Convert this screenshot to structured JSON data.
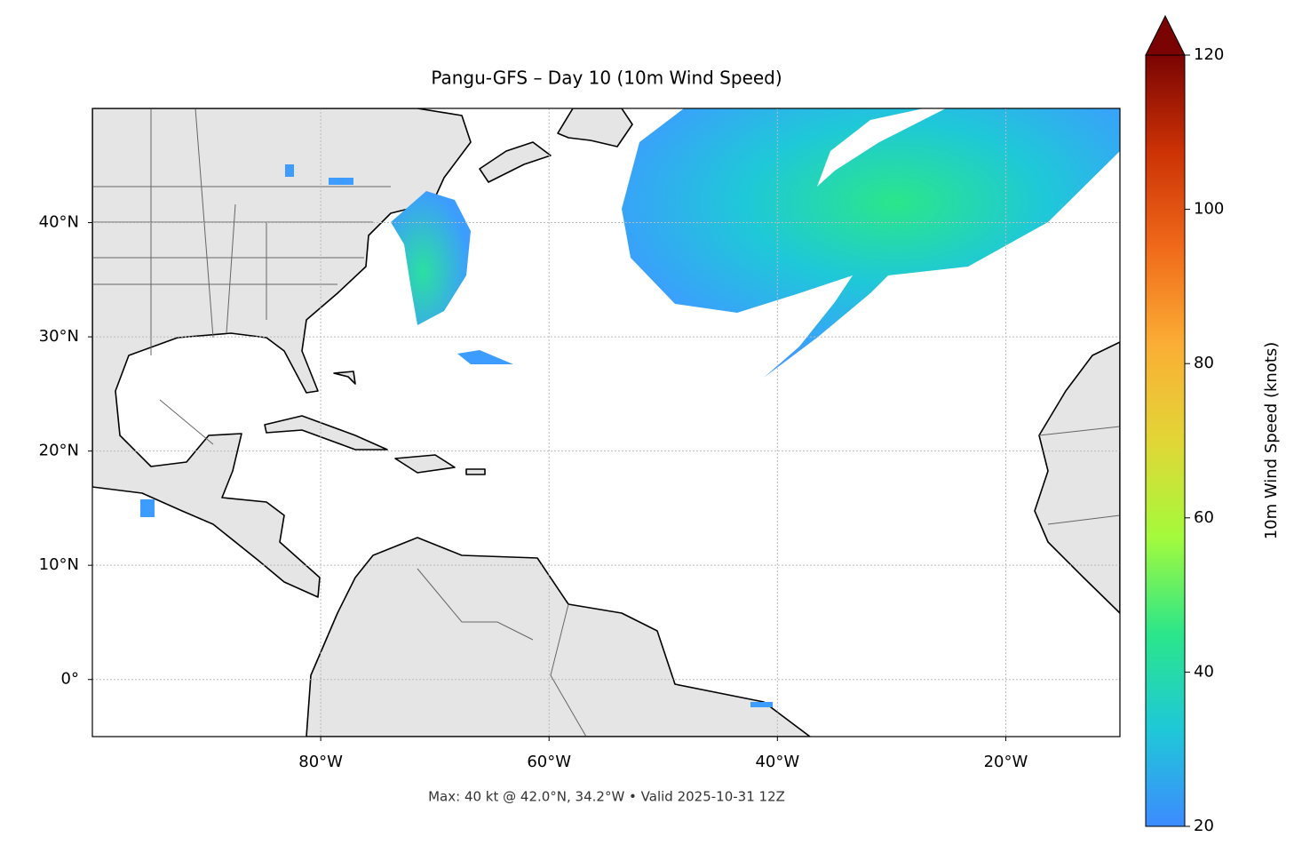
{
  "chart_data": {
    "type": "map",
    "title": "Pangu-GFS – Day 10 (10m Wind Speed)",
    "subtitle": "Max: 40 kt @ 42.0°N, 34.2°W • Valid 2025-10-31 12Z",
    "xlim": [
      -100,
      -10
    ],
    "ylim": [
      -5,
      50
    ],
    "xticks": [
      {
        "value": -80,
        "label": "80°W"
      },
      {
        "value": -60,
        "label": "60°W"
      },
      {
        "value": -40,
        "label": "40°W"
      },
      {
        "value": -20,
        "label": "20°W"
      }
    ],
    "yticks": [
      {
        "value": 0,
        "label": "0°"
      },
      {
        "value": 10,
        "label": "10°N"
      },
      {
        "value": 20,
        "label": "20°N"
      },
      {
        "value": 30,
        "label": "30°N"
      },
      {
        "value": 40,
        "label": "40°N"
      }
    ],
    "grid": true,
    "colorbar": {
      "label": "10m Wind Speed (knots)",
      "lim": [
        20,
        120
      ],
      "ticks": [
        20,
        40,
        60,
        80,
        100,
        120
      ],
      "extend": "max",
      "colormap": [
        "#3d8bff",
        "#1fc8d8",
        "#2be68a",
        "#a4fa3c",
        "#e2d636",
        "#fbae35",
        "#f06a1a",
        "#cc3205",
        "#7a0403"
      ]
    }
  }
}
